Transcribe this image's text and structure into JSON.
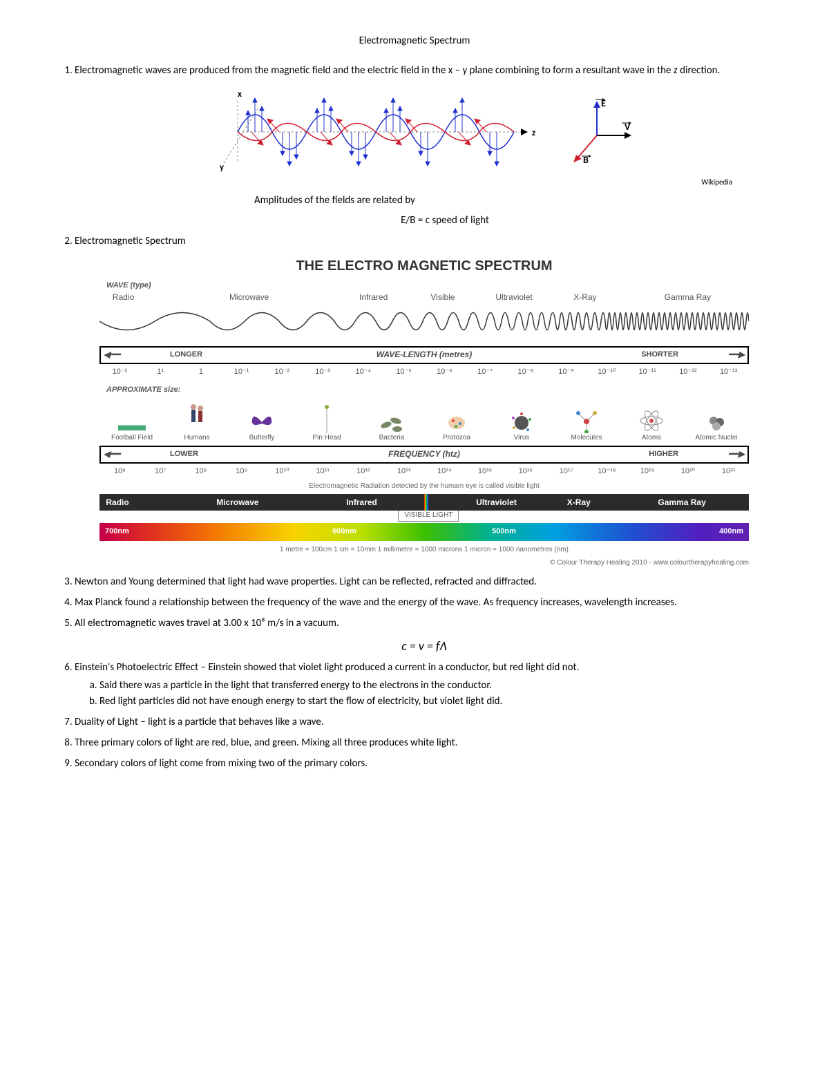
{
  "title": "Electromagnetic Spectrum",
  "items": {
    "1": "Electromagnetic waves are produced from the magnetic field and the electric field in the x – y plane combining to form a resultant wave in the z direction.",
    "2": "Electromagnetic Spectrum",
    "3": "Newton and Young determined that light had wave properties. Light can be reflected, refracted and diffracted.",
    "4": "Max Planck found a relationship between the frequency of the wave and the energy of the wave. As frequency increases, wavelength increases.",
    "5": "All electromagnetic waves travel at 3.00 x 10⁸ m/s in a vacuum.",
    "6": "Einstein's Photoelectric Effect – Einstein showed that violet light produced a current in a conductor, but red light did not.",
    "6a": "Said there was a particle in the light that transferred energy to the electrons in the conductor.",
    "6b": "Red light particles did not have enough energy to start the flow of electricity, but violet light did.",
    "7": "Duality of Light – light is a particle that behaves like a wave.",
    "8": "Three primary colors of light are red, blue, and green. Mixing all three produces white light.",
    "9": "Secondary colors of light come from mixing two of the primary colors."
  },
  "wave_diagram": {
    "x_label": "x",
    "y_label": "y",
    "z_label": "z",
    "e_label": "E",
    "v_label": "V",
    "b_label": "B",
    "e_color": "#2030d0",
    "b_color": "#d02030",
    "credit": "Wikipedia",
    "caption": "Amplitudes of the fields are related by",
    "equation": "E/B = c     speed of light"
  },
  "equation_main": "c =  v = fΛ",
  "spectrum": {
    "title": "THE ELECTRO MAGNETIC SPECTRUM",
    "wave_type_label": "WAVE (type)",
    "types": [
      "Radio",
      "Microwave",
      "Infrared",
      "Visible",
      "Ultraviolet",
      "X-Ray",
      "Gamma Ray"
    ],
    "type_positions_pct": [
      4,
      22,
      42,
      52,
      62,
      74,
      91
    ],
    "wavelength_bar": {
      "center": "WAVE-LENGTH (metres)",
      "left": "LONGER",
      "right": "SHORTER"
    },
    "wavelength_ticks": [
      "10⁻²",
      "1¹",
      "1",
      "10⁻¹",
      "10⁻²",
      "10⁻³",
      "10⁻⁴",
      "10⁻⁵",
      "10⁻⁶",
      "10⁻⁷",
      "10⁻⁸",
      "10⁻⁹",
      "10⁻¹⁰",
      "10⁻¹¹",
      "10⁻¹²",
      "10⁻¹³"
    ],
    "size_label": "APPROXIMATE size:",
    "sizes": [
      "Football Field",
      "Humans",
      "Butterfly",
      "Pin Head",
      "Bacteria",
      "Protozoa",
      "Virus",
      "Molecules",
      "Atoms",
      "Atomic Nuclei"
    ],
    "frequency_bar": {
      "center": "FREQUENCY (htz)",
      "left": "LOWER",
      "right": "HIGHER"
    },
    "frequency_ticks": [
      "10⁶",
      "10⁷",
      "10⁸",
      "10⁹",
      "10¹⁰",
      "10¹¹",
      "10¹²",
      "10¹³",
      "10¹⁴",
      "10¹⁵",
      "10¹⁶",
      "10¹⁷",
      "10⁻¹⁸",
      "10¹⁹",
      "10²⁰",
      "10²¹"
    ],
    "detected_note": "Electromagnetic Radiation detected by the humam eye is called visible light",
    "dark_band": [
      "Radio",
      "Microwave",
      "Infrared",
      "Ultraviolet",
      "X-Ray",
      "Gamma Ray"
    ],
    "dark_band_positions_pct": [
      4,
      22,
      40,
      62,
      74,
      91
    ],
    "visible_label": "VISIBLE LIGHT",
    "visible_ticks": [
      "700nm",
      "600nm",
      "500nm",
      "400nm"
    ],
    "units_note": "1 metre = 100cm   1 cm = 10mm   1 millimetre = 1000 microns   1 micron = 1000 nanometres (nm)",
    "credit": "© Colour Therapy Healing 2010 - www.colourtherapyhealing.com"
  }
}
